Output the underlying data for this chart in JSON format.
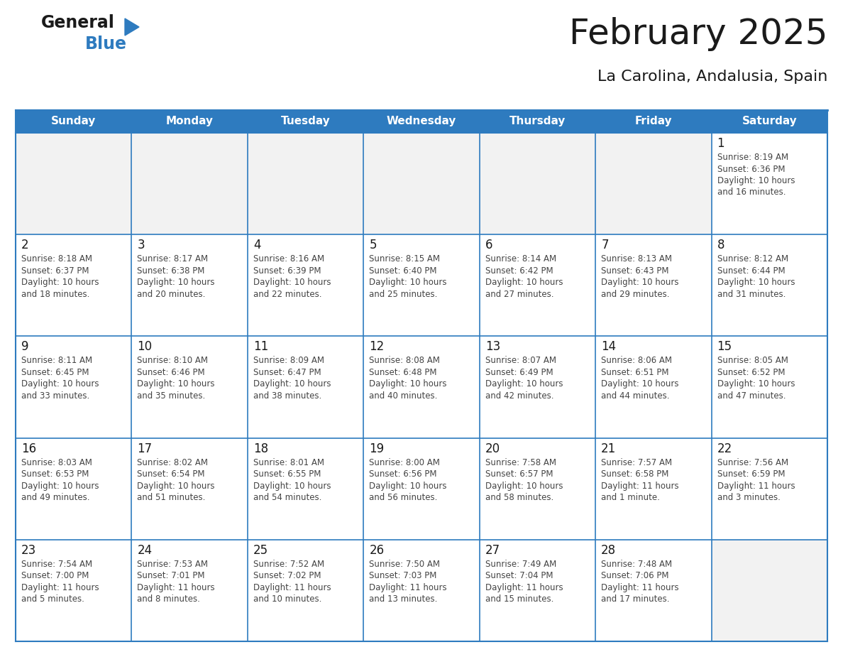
{
  "title": "February 2025",
  "subtitle": "La Carolina, Andalusia, Spain",
  "header_bg": "#2E7BBF",
  "header_text_color": "#FFFFFF",
  "cell_bg": "#FFFFFF",
  "empty_cell_bg": "#F2F2F2",
  "border_color": "#2E7BBF",
  "row_border_color": "#2E7BBF",
  "day_num_color": "#1a1a1a",
  "info_text_color": "#444444",
  "days_of_week": [
    "Sunday",
    "Monday",
    "Tuesday",
    "Wednesday",
    "Thursday",
    "Friday",
    "Saturday"
  ],
  "logo_general_color": "#1a1a1a",
  "logo_blue_color": "#2E7BBF",
  "calendar": [
    [
      null,
      null,
      null,
      null,
      null,
      null,
      1
    ],
    [
      2,
      3,
      4,
      5,
      6,
      7,
      8
    ],
    [
      9,
      10,
      11,
      12,
      13,
      14,
      15
    ],
    [
      16,
      17,
      18,
      19,
      20,
      21,
      22
    ],
    [
      23,
      24,
      25,
      26,
      27,
      28,
      null
    ]
  ],
  "cell_data": {
    "1": {
      "sunrise": "8:19 AM",
      "sunset": "6:36 PM",
      "daylight": "10 hours and 16 minutes"
    },
    "2": {
      "sunrise": "8:18 AM",
      "sunset": "6:37 PM",
      "daylight": "10 hours and 18 minutes"
    },
    "3": {
      "sunrise": "8:17 AM",
      "sunset": "6:38 PM",
      "daylight": "10 hours and 20 minutes"
    },
    "4": {
      "sunrise": "8:16 AM",
      "sunset": "6:39 PM",
      "daylight": "10 hours and 22 minutes"
    },
    "5": {
      "sunrise": "8:15 AM",
      "sunset": "6:40 PM",
      "daylight": "10 hours and 25 minutes"
    },
    "6": {
      "sunrise": "8:14 AM",
      "sunset": "6:42 PM",
      "daylight": "10 hours and 27 minutes"
    },
    "7": {
      "sunrise": "8:13 AM",
      "sunset": "6:43 PM",
      "daylight": "10 hours and 29 minutes"
    },
    "8": {
      "sunrise": "8:12 AM",
      "sunset": "6:44 PM",
      "daylight": "10 hours and 31 minutes"
    },
    "9": {
      "sunrise": "8:11 AM",
      "sunset": "6:45 PM",
      "daylight": "10 hours and 33 minutes"
    },
    "10": {
      "sunrise": "8:10 AM",
      "sunset": "6:46 PM",
      "daylight": "10 hours and 35 minutes"
    },
    "11": {
      "sunrise": "8:09 AM",
      "sunset": "6:47 PM",
      "daylight": "10 hours and 38 minutes"
    },
    "12": {
      "sunrise": "8:08 AM",
      "sunset": "6:48 PM",
      "daylight": "10 hours and 40 minutes"
    },
    "13": {
      "sunrise": "8:07 AM",
      "sunset": "6:49 PM",
      "daylight": "10 hours and 42 minutes"
    },
    "14": {
      "sunrise": "8:06 AM",
      "sunset": "6:51 PM",
      "daylight": "10 hours and 44 minutes"
    },
    "15": {
      "sunrise": "8:05 AM",
      "sunset": "6:52 PM",
      "daylight": "10 hours and 47 minutes"
    },
    "16": {
      "sunrise": "8:03 AM",
      "sunset": "6:53 PM",
      "daylight": "10 hours and 49 minutes"
    },
    "17": {
      "sunrise": "8:02 AM",
      "sunset": "6:54 PM",
      "daylight": "10 hours and 51 minutes"
    },
    "18": {
      "sunrise": "8:01 AM",
      "sunset": "6:55 PM",
      "daylight": "10 hours and 54 minutes"
    },
    "19": {
      "sunrise": "8:00 AM",
      "sunset": "6:56 PM",
      "daylight": "10 hours and 56 minutes"
    },
    "20": {
      "sunrise": "7:58 AM",
      "sunset": "6:57 PM",
      "daylight": "10 hours and 58 minutes"
    },
    "21": {
      "sunrise": "7:57 AM",
      "sunset": "6:58 PM",
      "daylight": "11 hours and 1 minute"
    },
    "22": {
      "sunrise": "7:56 AM",
      "sunset": "6:59 PM",
      "daylight": "11 hours and 3 minutes"
    },
    "23": {
      "sunrise": "7:54 AM",
      "sunset": "7:00 PM",
      "daylight": "11 hours and 5 minutes"
    },
    "24": {
      "sunrise": "7:53 AM",
      "sunset": "7:01 PM",
      "daylight": "11 hours and 8 minutes"
    },
    "25": {
      "sunrise": "7:52 AM",
      "sunset": "7:02 PM",
      "daylight": "11 hours and 10 minutes"
    },
    "26": {
      "sunrise": "7:50 AM",
      "sunset": "7:03 PM",
      "daylight": "11 hours and 13 minutes"
    },
    "27": {
      "sunrise": "7:49 AM",
      "sunset": "7:04 PM",
      "daylight": "11 hours and 15 minutes"
    },
    "28": {
      "sunrise": "7:48 AM",
      "sunset": "7:06 PM",
      "daylight": "11 hours and 17 minutes"
    }
  }
}
